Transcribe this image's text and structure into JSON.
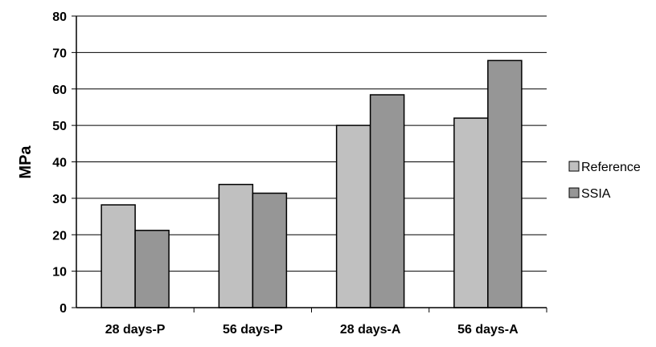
{
  "chart_data": {
    "type": "bar",
    "categories": [
      "28 days-P",
      "56 days-P",
      "28 days-A",
      "56 days-A"
    ],
    "series": [
      {
        "name": "Reference",
        "values": [
          28.2,
          33.8,
          50.0,
          52.0
        ],
        "color": "#c0c0c0"
      },
      {
        "name": "SSIA",
        "values": [
          21.2,
          31.4,
          58.4,
          67.8
        ],
        "color": "#969696"
      }
    ],
    "ylabel": "MPa",
    "xlabel": "",
    "ylim": [
      0,
      80
    ],
    "yticks": [
      0,
      10,
      20,
      30,
      40,
      50,
      60,
      70,
      80
    ],
    "grid": true,
    "legend_position": "right"
  }
}
